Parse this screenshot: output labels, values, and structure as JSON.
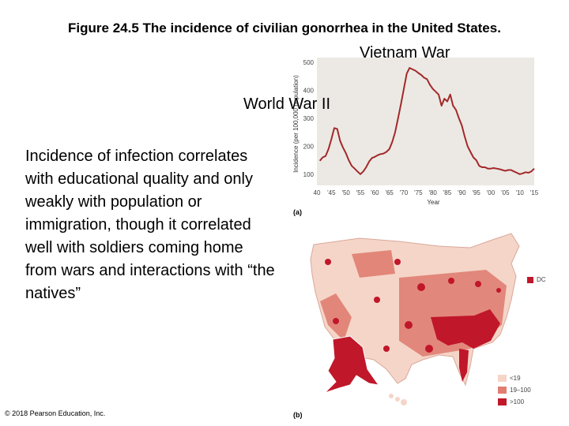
{
  "slide": {
    "title": "Figure 24.5  The incidence of civilian gonorrhea in the United States.",
    "annotation_vietnam": "Vietnam War",
    "annotation_ww2": "World War II",
    "bullet_text": "Incidence of infection correlates with educational quality and only weakly with population or immigration, though it correlated well with soldiers coming home from wars and interactions with “the natives”",
    "copyright": "© 2018 Pearson Education, Inc.",
    "panel_a_label": "(a)",
    "panel_b_label": "(b)"
  },
  "chart_data": [
    {
      "type": "line",
      "xlabel": "Year",
      "ylabel": "Incidence (per 100,000 population)",
      "xlim": [
        1940,
        2015
      ],
      "ylim": [
        60,
        500
      ],
      "xticks": [
        1940,
        1945,
        1950,
        1955,
        1960,
        1965,
        1970,
        1975,
        1980,
        1985,
        1990,
        1995,
        2000,
        2005,
        2010,
        2015
      ],
      "xtick_labels": [
        "40",
        "'45",
        "'50",
        "'55",
        "'60",
        "'65",
        "'70",
        "'75",
        "'80",
        "'85",
        "'90",
        "'95",
        "'00",
        "'05",
        "'10",
        "'15"
      ],
      "yticks": [
        100,
        200,
        300,
        400,
        500
      ],
      "grid": false,
      "series": [
        {
          "color": "#a3282a",
          "x": [
            1941,
            1942,
            1943,
            1944,
            1945,
            1946,
            1947,
            1948,
            1949,
            1950,
            1951,
            1952,
            1953,
            1954,
            1955,
            1956,
            1957,
            1958,
            1959,
            1960,
            1961,
            1962,
            1963,
            1964,
            1965,
            1966,
            1967,
            1968,
            1969,
            1970,
            1971,
            1972,
            1973,
            1974,
            1975,
            1976,
            1977,
            1978,
            1979,
            1980,
            1981,
            1982,
            1983,
            1984,
            1985,
            1986,
            1987,
            1988,
            1989,
            1990,
            1991,
            1992,
            1993,
            1994,
            1995,
            1996,
            1997,
            1998,
            1999,
            2000,
            2001,
            2002,
            2003,
            2004,
            2005,
            2006,
            2007,
            2008,
            2009,
            2010,
            2011,
            2012,
            2013,
            2014,
            2015
          ],
          "y": [
            148,
            160,
            165,
            190,
            225,
            265,
            262,
            220,
            195,
            175,
            150,
            130,
            120,
            110,
            100,
            110,
            125,
            145,
            158,
            162,
            168,
            172,
            174,
            180,
            190,
            215,
            250,
            300,
            350,
            405,
            460,
            480,
            475,
            470,
            462,
            455,
            445,
            440,
            420,
            405,
            395,
            385,
            345,
            370,
            360,
            385,
            345,
            330,
            300,
            275,
            235,
            200,
            180,
            160,
            150,
            130,
            125,
            125,
            120,
            120,
            122,
            120,
            118,
            115,
            112,
            115,
            115,
            110,
            105,
            100,
            103,
            107,
            105,
            110,
            120
          ]
        }
      ]
    },
    {
      "type": "map",
      "legend": [
        {
          "label": "<19",
          "color": "#f5d5c8"
        },
        {
          "label": "19–100",
          "color": "#e07e72"
        },
        {
          "label": ">100",
          "color": "#c0172a"
        }
      ],
      "callout": {
        "label": "DC",
        "color": "#c0172a"
      }
    }
  ]
}
